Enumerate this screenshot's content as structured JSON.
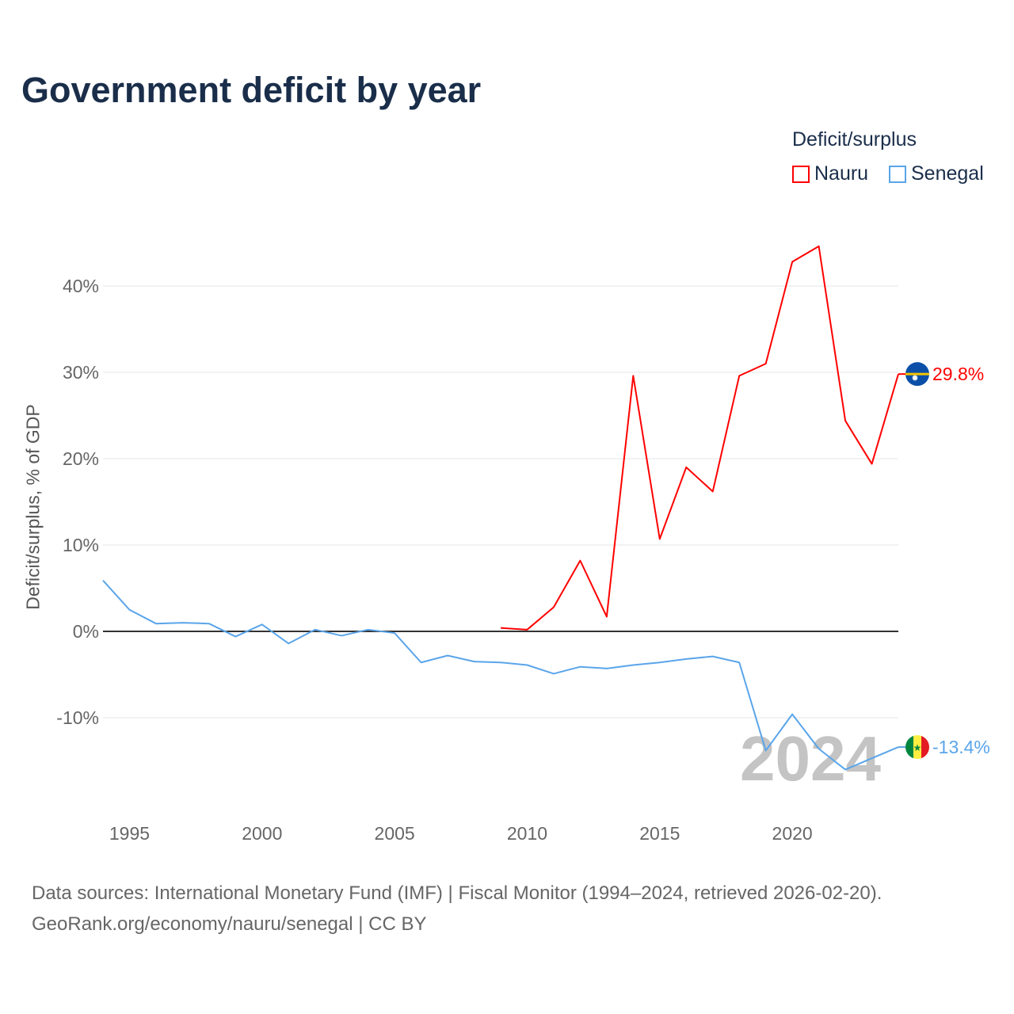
{
  "chart_data": {
    "type": "line",
    "title": "Government deficit by year",
    "ylabel": "Deficit/surplus, % of GDP",
    "xlabel": "",
    "xlim": [
      1994,
      2024
    ],
    "ylim": [
      -19,
      46
    ],
    "x_ticks": [
      1995,
      2000,
      2005,
      2010,
      2015,
      2020
    ],
    "y_ticks": [
      -10,
      0,
      10,
      20,
      30,
      40
    ],
    "y_tick_labels": [
      "-10%",
      "0%",
      "10%",
      "20%",
      "30%",
      "40%"
    ],
    "legend_title": "Deficit/surplus",
    "legend_position": "top-right",
    "watermark_year": "2024",
    "series": [
      {
        "name": "Nauru",
        "color": "#ff0000",
        "end_label": "29.8%",
        "x": [
          2009,
          2010,
          2011,
          2012,
          2013,
          2014,
          2015,
          2016,
          2017,
          2018,
          2019,
          2020,
          2021,
          2022,
          2023,
          2024
        ],
        "values": [
          0.4,
          0.2,
          2.8,
          8.2,
          1.7,
          29.6,
          10.7,
          19.0,
          16.2,
          29.6,
          31.0,
          42.8,
          44.6,
          24.4,
          19.4,
          29.8
        ]
      },
      {
        "name": "Senegal",
        "color": "#5aa5ea",
        "end_label": "-13.4%",
        "x": [
          1994,
          1995,
          1996,
          1997,
          1998,
          1999,
          2000,
          2001,
          2002,
          2003,
          2004,
          2005,
          2006,
          2007,
          2008,
          2009,
          2010,
          2011,
          2012,
          2013,
          2014,
          2015,
          2016,
          2017,
          2018,
          2019,
          2020,
          2021,
          2022,
          2023,
          2024
        ],
        "values": [
          5.9,
          2.5,
          0.9,
          1.0,
          0.9,
          -0.6,
          0.8,
          -1.4,
          0.2,
          -0.5,
          0.2,
          -0.2,
          -3.6,
          -2.8,
          -3.5,
          -3.6,
          -3.9,
          -4.9,
          -4.1,
          -4.3,
          -3.9,
          -3.6,
          -3.2,
          -2.9,
          -3.6,
          -13.8,
          -9.6,
          -13.6,
          -16.0,
          -14.7,
          -13.4
        ]
      }
    ]
  },
  "footer": {
    "source": "Data sources: International Monetary Fund (IMF) | Fiscal Monitor (1994–2024, retrieved 2026-02-20).",
    "link": "GeoRank.org/economy/nauru/senegal | CC BY"
  }
}
